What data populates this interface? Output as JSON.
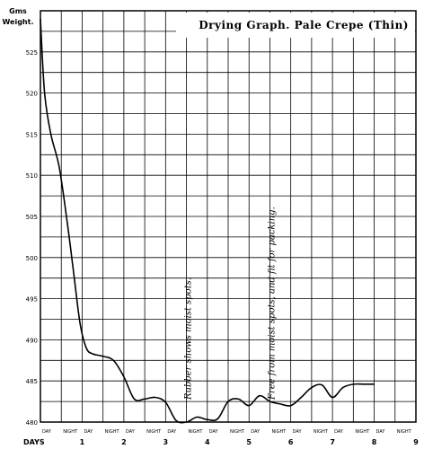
{
  "chart_data": {
    "type": "line",
    "title": "Drying Graph. Pale Crepe (Thin)",
    "ylabel_line1": "Gms",
    "ylabel_line2": "Weight.",
    "xlabel": "DAYS",
    "ylim": [
      480,
      530
    ],
    "xlim": [
      0,
      9
    ],
    "y_ticks": [
      480,
      485,
      490,
      495,
      500,
      505,
      510,
      515,
      520,
      525
    ],
    "x_ticks": [
      "1",
      "2",
      "3",
      "4",
      "5",
      "6",
      "7",
      "8",
      "9"
    ],
    "x_period_labels": [
      "DAY",
      "NIGHT",
      "DAY",
      "NIGHT",
      "DAY",
      "NIGHT",
      "DAY",
      "NIGHT",
      "DAY",
      "NIGHT",
      "DAY",
      "NIGHT",
      "DAY",
      "NIGHT",
      "DAY",
      "NIGHT",
      "DAY",
      "NIGHT"
    ],
    "grid": true,
    "series": [
      {
        "x": [
          0,
          0.1,
          0.25,
          0.45,
          0.65,
          0.8,
          0.95,
          1.1,
          1.25,
          1.5,
          1.75,
          2.0,
          2.25,
          2.5,
          2.75,
          3.0,
          3.25,
          3.5,
          3.75,
          4.0,
          4.25,
          4.5,
          4.75,
          5.0,
          5.25,
          5.5,
          5.75,
          6.0,
          6.25,
          6.5,
          6.75,
          7.0,
          7.25,
          7.5,
          7.75,
          8.0
        ],
        "y": [
          529,
          520,
          515,
          511,
          504,
          498,
          492,
          489,
          488.3,
          488,
          487.5,
          485.5,
          482.8,
          482.8,
          483,
          482.4,
          480.2,
          480,
          480.6,
          480.3,
          480.4,
          482.5,
          482.8,
          482,
          483.2,
          482.5,
          482.2,
          482,
          483,
          484.2,
          484.5,
          483,
          484.2,
          484.6,
          484.6,
          484.6
        ]
      }
    ],
    "annotations": [
      {
        "text": "Rubber shows moist spots.",
        "x": 3.5
      },
      {
        "text": "Free from moist spots, and fit for packing.",
        "x": 5.5
      }
    ]
  }
}
